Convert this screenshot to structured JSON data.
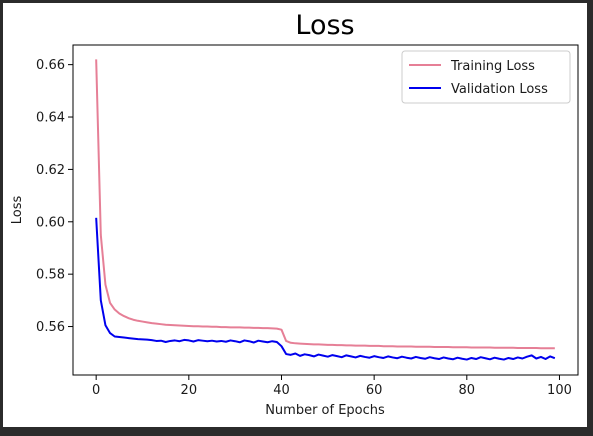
{
  "chart_data": {
    "type": "line",
    "title": "Loss",
    "xlabel": "Number of Epochs",
    "ylabel": "Loss",
    "xlim": [
      -5,
      104
    ],
    "ylim": [
      0.5415,
      0.6675
    ],
    "xticks": [
      0,
      20,
      40,
      60,
      80,
      100
    ],
    "xtick_labels": [
      "0",
      "20",
      "40",
      "60",
      "80",
      "100"
    ],
    "yticks": [
      0.56,
      0.58,
      0.6,
      0.62,
      0.64,
      0.66
    ],
    "ytick_labels": [
      "0.56",
      "0.58",
      "0.60",
      "0.62",
      "0.64",
      "0.66"
    ],
    "grid": false,
    "legend_position": "top-right",
    "x": [
      0,
      1,
      2,
      3,
      4,
      5,
      6,
      7,
      8,
      9,
      10,
      11,
      12,
      13,
      14,
      15,
      16,
      17,
      18,
      19,
      20,
      21,
      22,
      23,
      24,
      25,
      26,
      27,
      28,
      29,
      30,
      31,
      32,
      33,
      34,
      35,
      36,
      37,
      38,
      39,
      40,
      41,
      42,
      43,
      44,
      45,
      46,
      47,
      48,
      49,
      50,
      51,
      52,
      53,
      54,
      55,
      56,
      57,
      58,
      59,
      60,
      61,
      62,
      63,
      64,
      65,
      66,
      67,
      68,
      69,
      70,
      71,
      72,
      73,
      74,
      75,
      76,
      77,
      78,
      79,
      80,
      81,
      82,
      83,
      84,
      85,
      86,
      87,
      88,
      89,
      90,
      91,
      92,
      93,
      94,
      95,
      96,
      97,
      98,
      99
    ],
    "series": [
      {
        "name": "Training Loss",
        "color": "#e67f96",
        "values": [
          0.662,
          0.595,
          0.576,
          0.569,
          0.5665,
          0.565,
          0.564,
          0.5632,
          0.5626,
          0.5622,
          0.5619,
          0.5616,
          0.5613,
          0.5611,
          0.5609,
          0.5607,
          0.5606,
          0.5605,
          0.5604,
          0.5603,
          0.5602,
          0.5601,
          0.5601,
          0.56,
          0.56,
          0.5599,
          0.5599,
          0.5598,
          0.5598,
          0.5597,
          0.5597,
          0.5597,
          0.5596,
          0.5596,
          0.5595,
          0.5595,
          0.5594,
          0.5594,
          0.5593,
          0.5592,
          0.5588,
          0.5545,
          0.5538,
          0.5536,
          0.5535,
          0.5534,
          0.5533,
          0.5532,
          0.5532,
          0.5531,
          0.553,
          0.553,
          0.5529,
          0.5529,
          0.5528,
          0.5528,
          0.5527,
          0.5527,
          0.5527,
          0.5526,
          0.5526,
          0.5526,
          0.5525,
          0.5525,
          0.5525,
          0.5524,
          0.5524,
          0.5524,
          0.5524,
          0.5523,
          0.5523,
          0.5523,
          0.5523,
          0.5522,
          0.5522,
          0.5522,
          0.5522,
          0.5521,
          0.5521,
          0.5521,
          0.5521,
          0.552,
          0.552,
          0.552,
          0.552,
          0.552,
          0.5519,
          0.5519,
          0.5519,
          0.5519,
          0.5519,
          0.5518,
          0.5518,
          0.5518,
          0.5518,
          0.5518,
          0.5517,
          0.5517,
          0.5517,
          0.5517
        ]
      },
      {
        "name": "Validation Loss",
        "color": "#0000ee",
        "values": [
          0.6015,
          0.57,
          0.5605,
          0.5575,
          0.5562,
          0.556,
          0.5558,
          0.5556,
          0.5554,
          0.5552,
          0.5551,
          0.555,
          0.5548,
          0.5545,
          0.5546,
          0.5541,
          0.5545,
          0.5547,
          0.5544,
          0.5549,
          0.5547,
          0.5543,
          0.5548,
          0.5546,
          0.5544,
          0.5546,
          0.5543,
          0.5545,
          0.5542,
          0.5547,
          0.5544,
          0.554,
          0.5547,
          0.5544,
          0.5539,
          0.5546,
          0.5543,
          0.554,
          0.5544,
          0.5541,
          0.5525,
          0.5495,
          0.5492,
          0.5497,
          0.5488,
          0.5494,
          0.5491,
          0.5486,
          0.5493,
          0.5489,
          0.5485,
          0.5491,
          0.5487,
          0.5483,
          0.549,
          0.5486,
          0.5482,
          0.5488,
          0.5484,
          0.5481,
          0.5487,
          0.5483,
          0.548,
          0.5486,
          0.5482,
          0.5479,
          0.5485,
          0.5481,
          0.5478,
          0.5484,
          0.548,
          0.5477,
          0.5483,
          0.5479,
          0.5476,
          0.5482,
          0.5478,
          0.5475,
          0.5481,
          0.5477,
          0.5474,
          0.548,
          0.5476,
          0.5483,
          0.5479,
          0.5475,
          0.5481,
          0.5477,
          0.5474,
          0.548,
          0.5476,
          0.5482,
          0.5478,
          0.5485,
          0.549,
          0.5478,
          0.5484,
          0.5476,
          0.5486,
          0.5479
        ]
      }
    ]
  }
}
